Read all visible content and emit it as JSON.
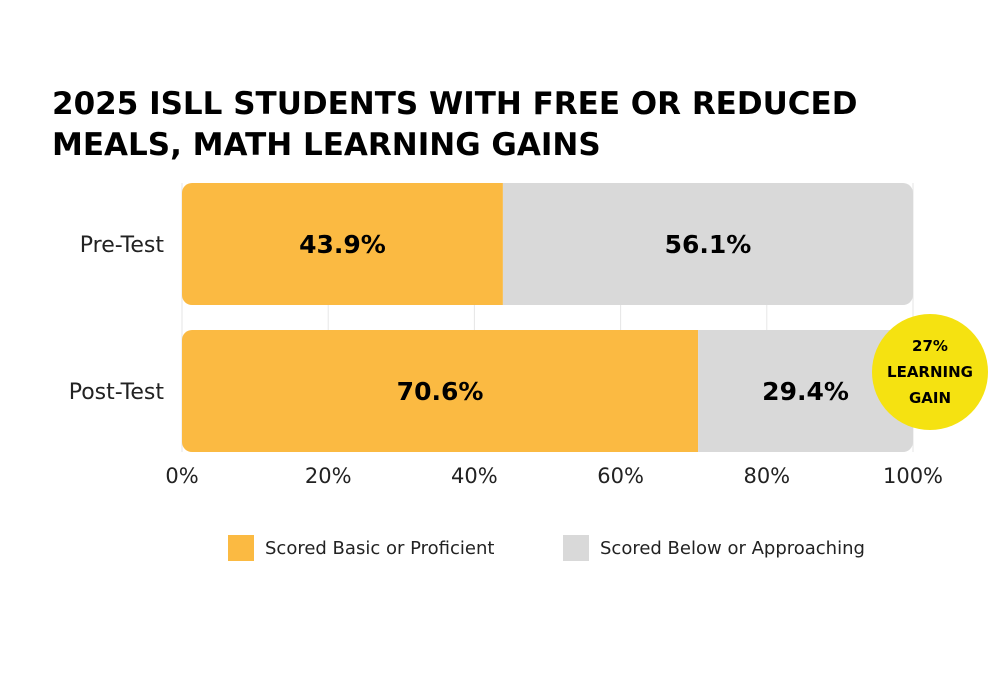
{
  "chart_data": {
    "type": "bar",
    "orientation": "horizontal",
    "stacked": true,
    "title": "2025 ISLL STUDENTS WITH FREE OR REDUCED MEALS, MATH LEARNING GAINS",
    "categories": [
      "Pre-Test",
      "Post-Test"
    ],
    "series": [
      {
        "name": "Scored Basic or Proficient",
        "values": [
          43.9,
          70.6
        ],
        "labels": [
          "43.9%",
          "70.6%"
        ],
        "color": "#FBBA42"
      },
      {
        "name": "Scored Below or Approaching",
        "values": [
          56.1,
          29.4
        ],
        "labels": [
          "56.1%",
          "29.4%"
        ],
        "color": "#D9D9D9"
      }
    ],
    "xlim": [
      0,
      100
    ],
    "xticks": [
      0,
      20,
      40,
      60,
      80,
      100
    ],
    "xtick_labels": [
      "0%",
      "20%",
      "40%",
      "60%",
      "80%",
      "100%"
    ],
    "grid": true,
    "legend_position": "bottom",
    "annotation": {
      "lines": [
        "27%",
        "LEARNING",
        "GAIN"
      ],
      "color": "#F5E211",
      "attached_to": "Post-Test"
    }
  }
}
